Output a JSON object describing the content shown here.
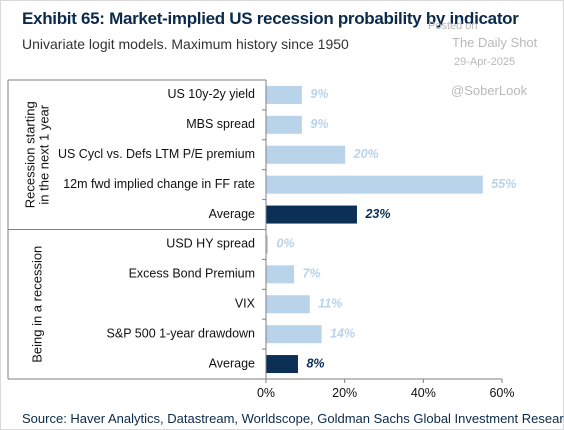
{
  "header": {
    "title": "Exhibit 65: Market-implied US recession probability by indicator",
    "subtitle": "Univariate logit models. Maximum history since 1950"
  },
  "watermark": {
    "posted_on": "Posted on",
    "publisher": "The Daily Shot",
    "date": "29-Apr-2025",
    "handle": "@SoberLook"
  },
  "footer": {
    "source": "Source: Haver Analytics, Datastream, Worldscope, Goldman Sachs Global Investment Research"
  },
  "colors": {
    "bar": "#b9d3ea",
    "average_bar": "#0b2f55",
    "bar_label": "#b9d3ea",
    "average_label": "#0b2f55",
    "axis": "#7f7f7f",
    "text": "#111111"
  },
  "chart_data": {
    "type": "bar",
    "orientation": "horizontal",
    "xlim": [
      0,
      60
    ],
    "xticks": [
      0,
      20,
      40,
      60
    ],
    "tick_suffix": "%",
    "grid": false,
    "groups": [
      {
        "label": "Recession starting in the next 1 year",
        "label_lines": [
          "Recession starting",
          "in the next 1 year"
        ],
        "categories": [
          "US 10y-2y yield",
          "MBS spread",
          "US Cycl vs. Defs LTM P/E premium",
          "12m fwd implied change in FF rate",
          "Average"
        ],
        "values": [
          9,
          9,
          20,
          55,
          23
        ],
        "value_labels": [
          "9%",
          "9%",
          "20%",
          "55%",
          "23%"
        ],
        "is_average": [
          false,
          false,
          false,
          false,
          true
        ]
      },
      {
        "label": "Being in a recession",
        "label_lines": [
          "Being in a recession"
        ],
        "categories": [
          "USD HY spread",
          "Excess Bond Premium",
          "VIX",
          "S&P 500 1-year drawdown",
          "Average"
        ],
        "values": [
          0,
          7,
          11,
          14,
          8
        ],
        "value_labels": [
          "0%",
          "7%",
          "11%",
          "14%",
          "8%"
        ],
        "is_average": [
          false,
          false,
          false,
          false,
          true
        ]
      }
    ]
  }
}
